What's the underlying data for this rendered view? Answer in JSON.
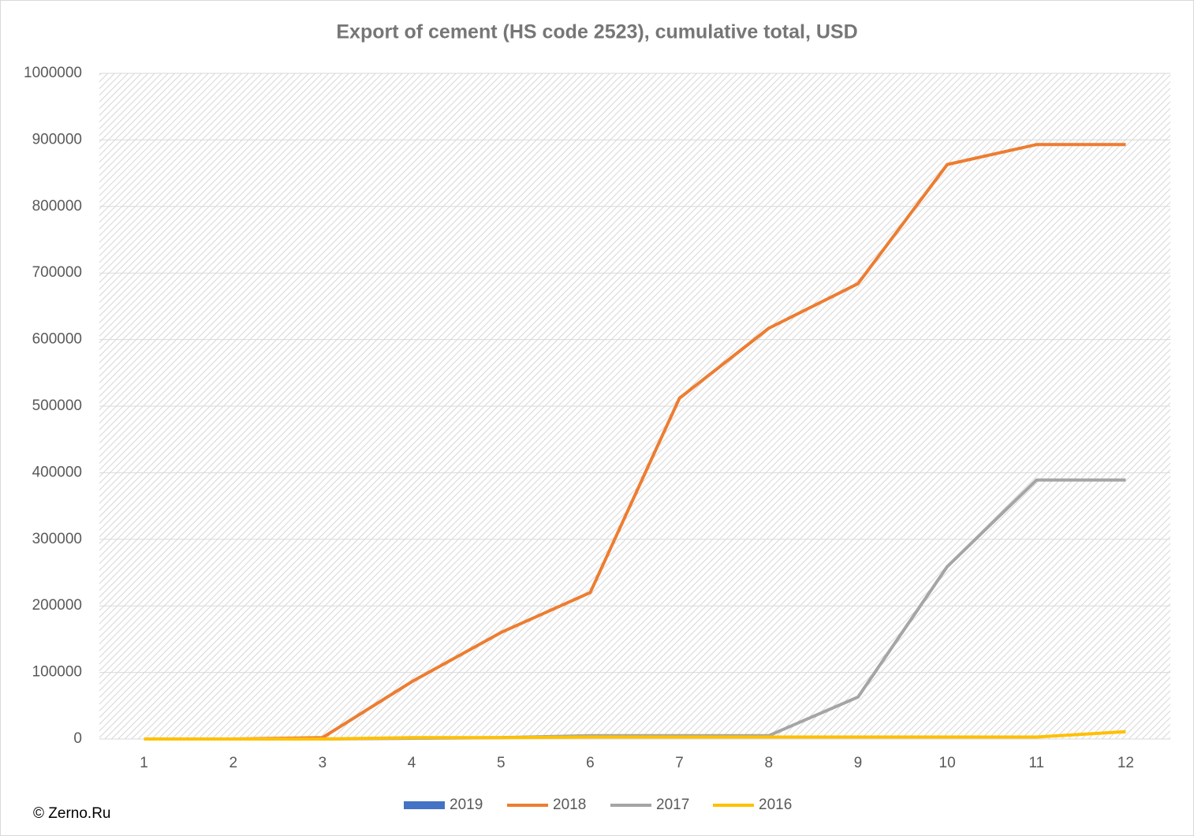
{
  "chart_data": {
    "type": "line",
    "title": "Export of cement (HS code 2523), cumulative total, USD",
    "annotation": "© Zerno.Ru",
    "categories": [
      "1",
      "2",
      "3",
      "4",
      "5",
      "6",
      "7",
      "8",
      "9",
      "10",
      "11",
      "12"
    ],
    "series": [
      {
        "name": "2019",
        "color": "#4472c4",
        "values": [
          null,
          null,
          null,
          null,
          null,
          null,
          null,
          null,
          null,
          null,
          null,
          null
        ]
      },
      {
        "name": "2018",
        "color": "#ed7d31",
        "values": [
          0,
          0,
          2000,
          86000,
          160000,
          220000,
          512000,
          617000,
          684000,
          863000,
          893000,
          893000
        ]
      },
      {
        "name": "2017",
        "color": "#a5a5a5",
        "values": [
          0,
          0,
          0,
          1000,
          2000,
          5000,
          5000,
          5000,
          63000,
          259000,
          389000,
          389000
        ]
      },
      {
        "name": "2016",
        "color": "#ffc000",
        "values": [
          0,
          0,
          0,
          2000,
          2000,
          3000,
          3000,
          3000,
          3000,
          3000,
          3000,
          11000
        ]
      }
    ],
    "ylim": [
      0,
      1000000
    ],
    "yticks": [
      0,
      100000,
      200000,
      300000,
      400000,
      500000,
      600000,
      700000,
      800000,
      900000,
      1000000
    ],
    "grid": true,
    "legend": "bottom"
  }
}
